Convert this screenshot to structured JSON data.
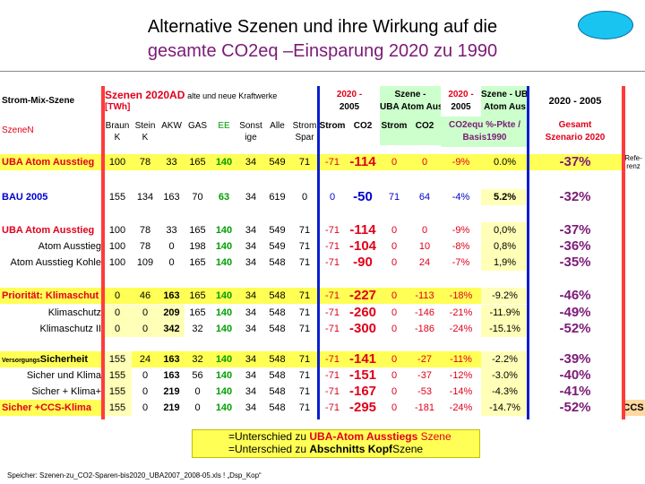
{
  "title_line1": "Alternative Szenen und  ihre Wirkung auf die",
  "title_line2": "gesamte CO2eq –Einsparung 2020 zu 1990",
  "colors": {
    "yellow": "#ffff55",
    "lightyellow": "#ffffb8",
    "green": "#ccffcc",
    "peach": "#ffd8a0",
    "red": "#e0001a",
    "purple": "#7b1a76",
    "blue": "#0a1ed0"
  },
  "header1": {
    "strom_mix": "Strom-Mix-Szene",
    "szenen": "Szenen 2020AD",
    "szenen_suffix": "alte und neue Kraftwerke",
    "szenen_unit": "[TWh]",
    "col_2020_2005_a": "2020 -",
    "col_2020_2005_b": "2005",
    "col_szene_uba_a": "Szene -",
    "col_szene_uba_b": "UBA Atom Aus",
    "col_2020_2005c_a": "2020 -",
    "col_2020_2005c_b": "2005",
    "col_szene_uba2_a": "Szene - UBA",
    "col_szene_uba2_b": "Atom Aus",
    "col_last": "2020 - 2005"
  },
  "header2": {
    "szene": "SzeneN",
    "braunk": "Braun K",
    "steink": "Stein K",
    "akw": "AKW",
    "gas": "GAS",
    "ee": "EE",
    "sonst": "Sonst ige",
    "alle": "Alle",
    "strom_spar": "Strom Spar",
    "strom1": "Strom",
    "co2_1": "CO2",
    "strom2": "Strom",
    "co2_2": "CO2",
    "co2equ_a": "CO2equ %-Pkte /",
    "co2equ_b": "Basis1990",
    "gesamt_a": "Gesamt",
    "gesamt_b": "Szenario 2020"
  },
  "rows": [
    {
      "name": "UBA  Atom Ausstieg",
      "v": [
        "100",
        "78",
        "33",
        "165",
        "140",
        "34",
        "549",
        "71",
        "-71",
        "-114",
        "0",
        "0",
        "-9%",
        "0.0%",
        "-37%"
      ],
      "side": "Refe- renz"
    },
    {
      "name": "BAU 2005",
      "v": [
        "155",
        "134",
        "163",
        "70",
        "63",
        "34",
        "619",
        "0",
        "0",
        "-50",
        "71",
        "64",
        "-4%",
        "5.2%",
        "-32%"
      ],
      "side": ""
    },
    {
      "name": "UBA  Atom Ausstieg",
      "v": [
        "100",
        "78",
        "33",
        "165",
        "140",
        "34",
        "549",
        "71",
        "-71",
        "-114",
        "0",
        "0",
        "-9%",
        "0,0%",
        "-37%"
      ],
      "side": ""
    },
    {
      "name": "Atom Ausstieg",
      "v": [
        "100",
        "78",
        "0",
        "198",
        "140",
        "34",
        "549",
        "71",
        "-71",
        "-104",
        "0",
        "10",
        "-8%",
        "0,8%",
        "-36%"
      ],
      "side": ""
    },
    {
      "name": "Atom Ausstieg Kohle",
      "v": [
        "100",
        "109",
        "0",
        "165",
        "140",
        "34",
        "548",
        "71",
        "-71",
        "-90",
        "0",
        "24",
        "-7%",
        "1,9%",
        "-35%"
      ],
      "side": ""
    },
    {
      "name": "Priorität: Klimaschut",
      "v": [
        "0",
        "46",
        "163",
        "165",
        "140",
        "34",
        "548",
        "71",
        "-71",
        "-227",
        "0",
        "-113",
        "-18%",
        "-9.2%",
        "-46%"
      ],
      "side": ""
    },
    {
      "name": "Klimaschutz",
      "v": [
        "0",
        "0",
        "209",
        "165",
        "140",
        "34",
        "548",
        "71",
        "-71",
        "-260",
        "0",
        "-146",
        "-21%",
        "-11.9%",
        "-49%"
      ],
      "side": ""
    },
    {
      "name": "Klimaschutz II",
      "v": [
        "0",
        "0",
        "342",
        "32",
        "140",
        "34",
        "548",
        "71",
        "-71",
        "-300",
        "0",
        "-186",
        "-24%",
        "-15.1%",
        "-52%"
      ],
      "side": ""
    },
    {
      "name": "Sicherheit",
      "prefix": "Versorgungs",
      "v": [
        "155",
        "24",
        "163",
        "32",
        "140",
        "34",
        "548",
        "71",
        "-71",
        "-141",
        "0",
        "-27",
        "-11%",
        "-2.2%",
        "-39%"
      ],
      "side": ""
    },
    {
      "name": "Sicher und Klima",
      "v": [
        "155",
        "0",
        "163",
        "56",
        "140",
        "34",
        "548",
        "71",
        "-71",
        "-151",
        "0",
        "-37",
        "-12%",
        "-3.0%",
        "-40%"
      ],
      "side": ""
    },
    {
      "name": "Sicher + Klima+",
      "v": [
        "155",
        "0",
        "219",
        "0",
        "140",
        "34",
        "548",
        "71",
        "-71",
        "-167",
        "0",
        "-53",
        "-14%",
        "-4.3%",
        "-41%"
      ],
      "side": ""
    },
    {
      "name": "Sicher +CCS-Klima",
      "v": [
        "155",
        "0",
        "219",
        "0",
        "140",
        "34",
        "548",
        "71",
        "-71",
        "-295",
        "0",
        "-181",
        "-24%",
        "-14.7%",
        "-52%"
      ],
      "side": "CCS"
    }
  ],
  "legend": {
    "line1_a": "=Unterschied zu ",
    "line1_b": "UBA-Atom Ausstiegs",
    "line1_c": " Szene",
    "line2_a": "=Unterschied zu ",
    "line2_b": "Abschnitts Kopf",
    "line2_c": "Szene"
  },
  "footer": "Speicher: Szenen-zu_CO2-Sparen-bis2020_UBA2007_2008-05.xls ! „Dsp_Kop“"
}
